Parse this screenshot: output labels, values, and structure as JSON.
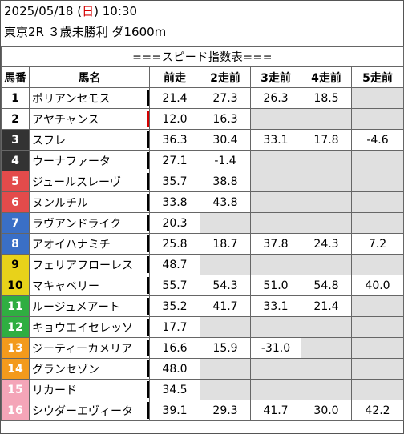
{
  "header": {
    "date": "2025/05/18",
    "day_open": "(",
    "day": "日",
    "day_close": ")",
    "time": "10:30",
    "race": "東京2R ３歳未勝利 ダ1600m"
  },
  "table_title": "===スピード指数表===",
  "columns": [
    "馬番",
    "馬名",
    "前走",
    "2走前",
    "3走前",
    "4走前",
    "5走前"
  ],
  "colors": {
    "gate1": "#ffffff",
    "gate2": "#ffffff",
    "gate3": "#333333",
    "gate4": "#333333",
    "gate5": "#e34b4b",
    "gate6": "#e34b4b",
    "gate7": "#3a6fc6",
    "gate8": "#3a6fc6",
    "gate9": "#e8d21a",
    "gate10": "#e8d21a",
    "gate11": "#2fae41",
    "gate12": "#2fae41",
    "gate13": "#f39a1c",
    "gate14": "#f39a1c",
    "gate15": "#f4a5b8",
    "gate16": "#f4a5b8",
    "empty_cell": "#e0e0e0",
    "accent_red": "#d40000"
  },
  "rows": [
    {
      "num": "1",
      "name": "ポリアンセモス",
      "bar": "black",
      "v": [
        "21.4",
        "27.3",
        "26.3",
        "18.5",
        ""
      ]
    },
    {
      "num": "2",
      "name": "アヤチャンス",
      "bar": "red",
      "v": [
        "12.0",
        "16.3",
        "",
        "",
        ""
      ]
    },
    {
      "num": "3",
      "name": "スフレ",
      "bar": "black",
      "v": [
        "36.3",
        "30.4",
        "33.1",
        "17.8",
        "-4.6"
      ]
    },
    {
      "num": "4",
      "name": "ウーナファータ",
      "bar": "black",
      "v": [
        "27.1",
        "-1.4",
        "",
        "",
        ""
      ]
    },
    {
      "num": "5",
      "name": "ジュールスレーヴ",
      "bar": "black",
      "v": [
        "35.7",
        "38.8",
        "",
        "",
        ""
      ]
    },
    {
      "num": "6",
      "name": "ヌンルチル",
      "bar": "black",
      "v": [
        "33.8",
        "43.8",
        "",
        "",
        ""
      ]
    },
    {
      "num": "7",
      "name": "ラヴアンドライク",
      "bar": "black",
      "v": [
        "20.3",
        "",
        "",
        "",
        ""
      ]
    },
    {
      "num": "8",
      "name": "アオイハナミチ",
      "bar": "black",
      "v": [
        "25.8",
        "18.7",
        "37.8",
        "24.3",
        "7.2"
      ]
    },
    {
      "num": "9",
      "name": "フェリアフローレス",
      "bar": "black",
      "v": [
        "48.7",
        "",
        "",
        "",
        ""
      ]
    },
    {
      "num": "10",
      "name": "マキャベリー",
      "bar": "black",
      "v": [
        "55.7",
        "54.3",
        "51.0",
        "54.8",
        "40.0"
      ]
    },
    {
      "num": "11",
      "name": "ルージュメアート",
      "bar": "black",
      "v": [
        "35.2",
        "41.7",
        "33.1",
        "21.4",
        ""
      ]
    },
    {
      "num": "12",
      "name": "キョウエイセレッソ",
      "bar": "black",
      "v": [
        "17.7",
        "",
        "",
        "",
        ""
      ]
    },
    {
      "num": "13",
      "name": "ジーティーカメリア",
      "bar": "black",
      "v": [
        "16.6",
        "15.9",
        "-31.0",
        "",
        ""
      ]
    },
    {
      "num": "14",
      "name": "グランセゾン",
      "bar": "black",
      "v": [
        "48.0",
        "",
        "",
        "",
        ""
      ]
    },
    {
      "num": "15",
      "name": "リカード",
      "bar": "black",
      "v": [
        "34.5",
        "",
        "",
        "",
        ""
      ]
    },
    {
      "num": "16",
      "name": "シウダーエヴィータ",
      "bar": "black",
      "v": [
        "39.1",
        "29.3",
        "41.7",
        "30.0",
        "42.2"
      ]
    }
  ]
}
